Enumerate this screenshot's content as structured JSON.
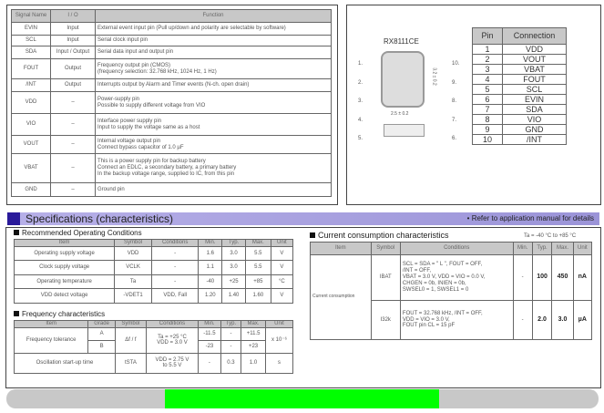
{
  "signal_table": {
    "headers": [
      "Signal Name",
      "I / O",
      "Function"
    ],
    "rows": [
      [
        "EVIN",
        "Input",
        "External event input pin (Pull up/down and polarity are selectable by software)"
      ],
      [
        "SCL",
        "Input",
        "Serial clock input pin"
      ],
      [
        "SDA",
        "Input / Output",
        "Serial data input and output pin"
      ],
      [
        "FOUT",
        "Output",
        "Frequency output pin (CMOS)\n(frequency selection: 32.768 kHz, 1024 Hz, 1 Hz)"
      ],
      [
        "/INT",
        "Output",
        "Interrupts output by Alarm and Timer events (N-ch. open drain)"
      ],
      [
        "VDD",
        "–",
        "Power-supply pin\nPossible to supply different voltage from VIO"
      ],
      [
        "VIO",
        "–",
        "Interface power supply pin\nInput to supply the voltage same as a host"
      ],
      [
        "VOUT",
        "–",
        "Internal voltage output pin\nConnect bypass capacitor of 1.0 µF"
      ],
      [
        "VBAT",
        "–",
        "This is a power supply pin for backup battery\nConnect an EDLC, a secondary battery, a primary battery\nIn the backup voltage range, supplied to IC, from this pin"
      ],
      [
        "GND",
        "–",
        "Ground pin"
      ]
    ]
  },
  "package": {
    "name": "RX8111CE",
    "left_pins": [
      "1.",
      "2.",
      "3.",
      "4.",
      "5."
    ],
    "right_pins": [
      "10.",
      "9.",
      "8.",
      "7.",
      "6."
    ],
    "dim_w": "2.5 ± 0.2",
    "dim_h": "3.2 ± 0.2"
  },
  "pin_table": {
    "headers": [
      "Pin",
      "Connection"
    ],
    "rows": [
      [
        "1",
        "VDD"
      ],
      [
        "2",
        "VOUT"
      ],
      [
        "3",
        "VBAT"
      ],
      [
        "4",
        "FOUT"
      ],
      [
        "5",
        "SCL"
      ],
      [
        "6",
        "EVIN"
      ],
      [
        "7",
        "SDA"
      ],
      [
        "8",
        "VIO"
      ],
      [
        "9",
        "GND"
      ],
      [
        "10",
        "/INT"
      ]
    ]
  },
  "specs": {
    "title": "Specifications (characteristics)",
    "note": "• Refer to application manual for details"
  },
  "roc": {
    "title": "Recommended Operating Conditions",
    "headers": [
      "Item",
      "Symbol",
      "Conditions",
      "Min.",
      "Typ.",
      "Max.",
      "Unit"
    ],
    "rows": [
      [
        "Operating supply voltage",
        "VDD",
        "-",
        "1.6",
        "3.0",
        "5.5",
        "V"
      ],
      [
        "Clock supply voltage",
        "VCLK",
        "-",
        "1.1",
        "3.0",
        "5.5",
        "V"
      ],
      [
        "Operating temperature",
        "Ta",
        "-",
        "-40",
        "+25",
        "+85",
        "°C"
      ],
      [
        "VDD detect voltage",
        "-VDET1",
        "VDD, Fall",
        "1.20",
        "1.40",
        "1.60",
        "V"
      ]
    ]
  },
  "freq": {
    "title": "Frequency characteristics",
    "headers": [
      "Item",
      "Grade",
      "Symbol",
      "Conditions",
      "Min.",
      "Typ.",
      "Max.",
      "Unit"
    ],
    "tol_item": "Frequency tolerance",
    "tol_symbol": "Δf / f",
    "tol_cond": "Ta = +25 °C\nVDD = 3.0 V",
    "tol_unit": "x 10⁻⁶",
    "tol_rows": [
      [
        "A",
        "-11.5",
        "-",
        "+11.5"
      ],
      [
        "B",
        "-23",
        "-",
        "+23"
      ]
    ],
    "osc": [
      "Oscillation start-up time",
      "tSTA",
      "VDD = 2.75 V\nto 5.5 V",
      "-",
      "0.3",
      "1.0",
      "s"
    ]
  },
  "current": {
    "title": "Current consumption characteristics",
    "temp": "Ta = -40 °C to +85 °C",
    "headers": [
      "Item",
      "Symbol",
      "Conditions",
      "Min.",
      "Typ.",
      "Max.",
      "Unit"
    ],
    "item": "Current consumption",
    "rows": [
      [
        "IBAT",
        "SCL = SDA = \" L \", FOUT = OFF,\n/INT = OFF,\nVBAT = 3.0 V, VDD = VIO = 0.0 V,\nCHGEN = 0b, INIEN = 0b,\nSWSEL0 = 1, SWSEL1 = 0",
        "-",
        "100",
        "450",
        "nA"
      ],
      [
        "I32k",
        "FOUT = 32.768 kHz, /INT = OFF,\nVDD = VIO = 3.0 V,\nFOUT pin CL = 15 pF",
        "-",
        "2.0",
        "3.0",
        "µA"
      ]
    ]
  },
  "scrollbar": {
    "thumb_start_percent": 26.8,
    "thumb_end_percent": 73.1,
    "colors": {
      "track": "#c8c8c8",
      "thumb": "#00ff00"
    }
  }
}
